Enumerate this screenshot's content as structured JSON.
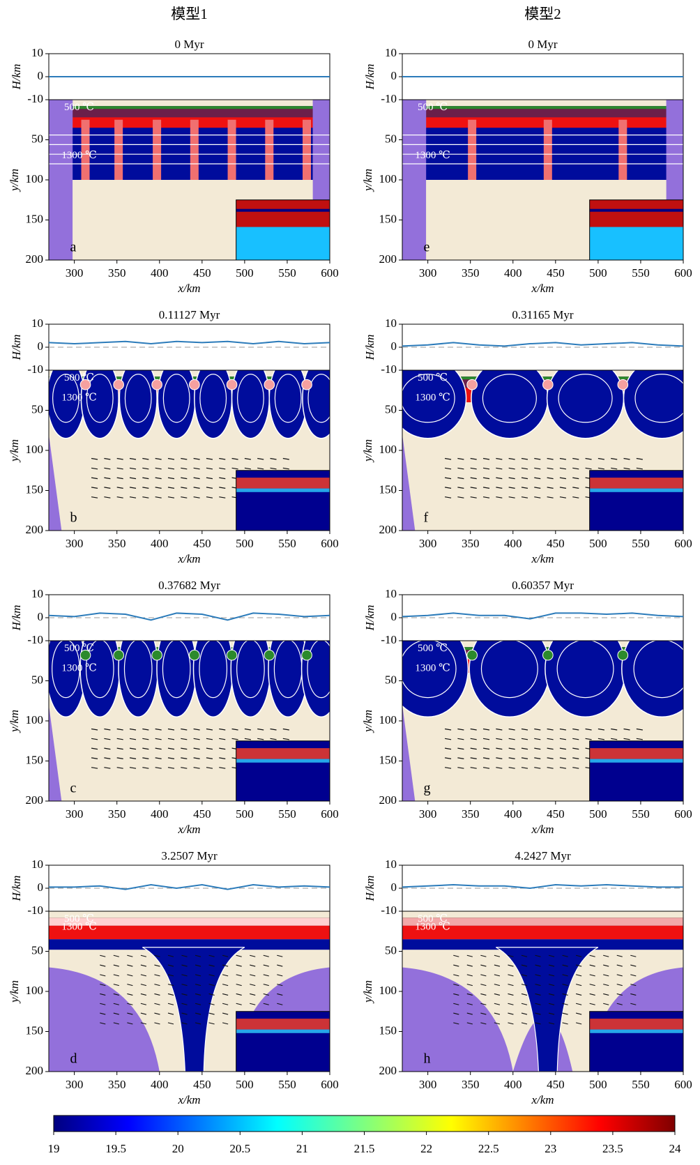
{
  "chart_data": {
    "type": "model-panels",
    "columns": [
      "模型1",
      "模型2"
    ],
    "xlabel": "x/km",
    "hlabel": "H/km",
    "ylabel": "y/km",
    "xlim": [
      270,
      600
    ],
    "xticks": [
      300,
      350,
      400,
      450,
      500,
      550,
      600
    ],
    "hlim": [
      -10,
      10
    ],
    "hticks": [
      10,
      0,
      -10
    ],
    "ylim": [
      0,
      200
    ],
    "yticks": [
      50,
      100,
      150,
      200
    ],
    "temp_labels": [
      "500 ℃",
      "1300 ℃"
    ],
    "topo_x": [
      270,
      300,
      330,
      360,
      390,
      420,
      450,
      480,
      510,
      540,
      570,
      600
    ],
    "topo_color": "#2b7bba",
    "panels": [
      {
        "label": "a",
        "title": "0 Myr",
        "topo": [
          0,
          0,
          0,
          0,
          0,
          0,
          0,
          0,
          0,
          0,
          0,
          0
        ]
      },
      {
        "label": "b",
        "title": "0.11127 Myr",
        "topo": [
          2,
          1.5,
          2,
          2.5,
          1.5,
          2.5,
          2,
          2.5,
          1.5,
          2.5,
          1.5,
          2
        ]
      },
      {
        "label": "c",
        "title": "0.37682 Myr",
        "topo": [
          1,
          0.5,
          2,
          1.5,
          -1,
          2,
          1.5,
          -1,
          2,
          1.5,
          0.5,
          1
        ]
      },
      {
        "label": "d",
        "title": "3.2507 Myr",
        "topo": [
          0.5,
          0.5,
          1,
          -0.5,
          1.5,
          0,
          1.5,
          -0.5,
          1.5,
          0.5,
          1,
          0.5
        ]
      },
      {
        "label": "e",
        "title": "0 Myr",
        "topo": [
          0,
          0,
          0,
          0,
          0,
          0,
          0,
          0,
          0,
          0,
          0,
          0
        ]
      },
      {
        "label": "f",
        "title": "0.31165 Myr",
        "topo": [
          0.5,
          1,
          2,
          1,
          0.5,
          1.5,
          2,
          1,
          1.5,
          2,
          1,
          0.5
        ]
      },
      {
        "label": "g",
        "title": "0.60357 Myr",
        "topo": [
          0.5,
          1,
          2,
          1,
          1,
          -0.5,
          2,
          2,
          1.5,
          2,
          1,
          0.5
        ]
      },
      {
        "label": "h",
        "title": "4.2427 Myr",
        "topo": [
          0.5,
          1,
          1.5,
          1,
          1,
          0,
          1.5,
          1,
          1.5,
          1,
          0.5,
          0.5
        ]
      }
    ],
    "colorbar": {
      "lim": [
        19,
        24
      ],
      "ticks": [
        19,
        19.5,
        20,
        20.5,
        21,
        21.5,
        22,
        22.5,
        23,
        23.5,
        24
      ]
    }
  }
}
